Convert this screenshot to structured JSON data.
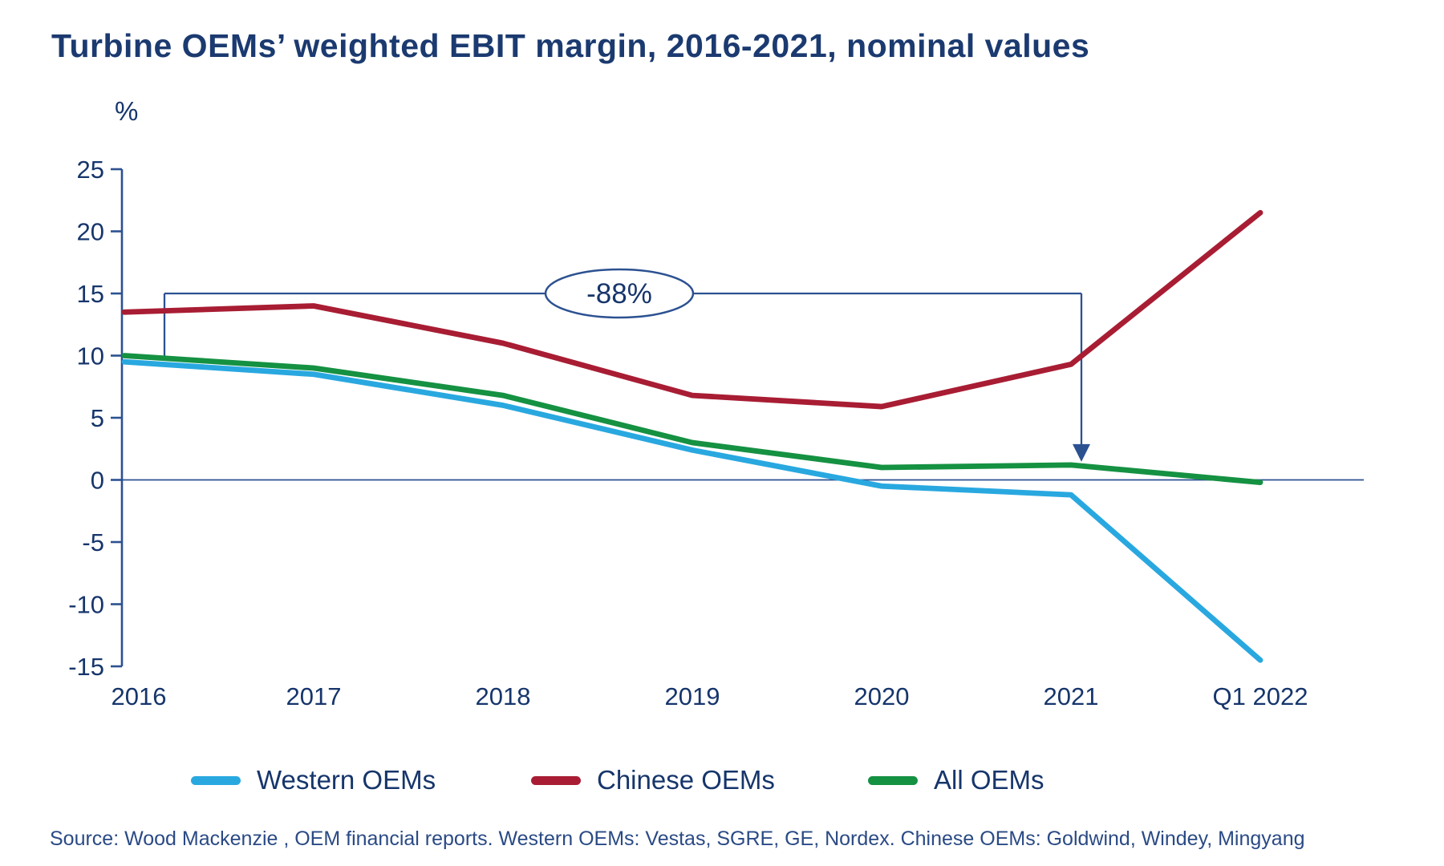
{
  "title": "Turbine OEMs’ weighted EBIT margin, 2016-2021, nominal values",
  "source": "Source: Wood Mackenzie , OEM financial reports. Western OEMs: Vestas, SGRE, GE, Nordex.  Chinese OEMs: Goldwind, Windey, Mingyang",
  "colors": {
    "text_navy": "#16356B",
    "axis_navy": "#2C5191",
    "western_blue": "#29A8E0",
    "chinese_red": "#A81D33",
    "all_green": "#159142"
  },
  "chart_data": {
    "type": "line",
    "title": "Turbine OEMs’ weighted EBIT margin, 2016-2021, nominal values",
    "ylabel": "%",
    "xlabel": "",
    "ylim": [
      -15,
      25
    ],
    "ytick_step": 5,
    "grid": false,
    "zero_line": true,
    "legend_position": "bottom",
    "categories": [
      "2016",
      "2017",
      "2018",
      "2019",
      "2020",
      "2021",
      "Q1 2022"
    ],
    "series": [
      {
        "name": "Western OEMs",
        "color": "#29A8E0",
        "values": [
          9.5,
          8.5,
          6.0,
          2.4,
          -0.5,
          -1.2,
          -14.5
        ]
      },
      {
        "name": "Chinese OEMs",
        "color": "#A81D33",
        "values": [
          13.5,
          14.0,
          11.0,
          6.8,
          5.9,
          9.3,
          21.5
        ]
      },
      {
        "name": "All OEMs",
        "color": "#159142",
        "values": [
          10.0,
          9.0,
          6.8,
          3.0,
          1.0,
          1.2,
          -0.2
        ]
      }
    ],
    "annotation": {
      "label": "-88%",
      "level": 15,
      "from_category": "2016",
      "to_category": "2021",
      "arrow_points_to": "All OEMs value in 2021"
    }
  }
}
